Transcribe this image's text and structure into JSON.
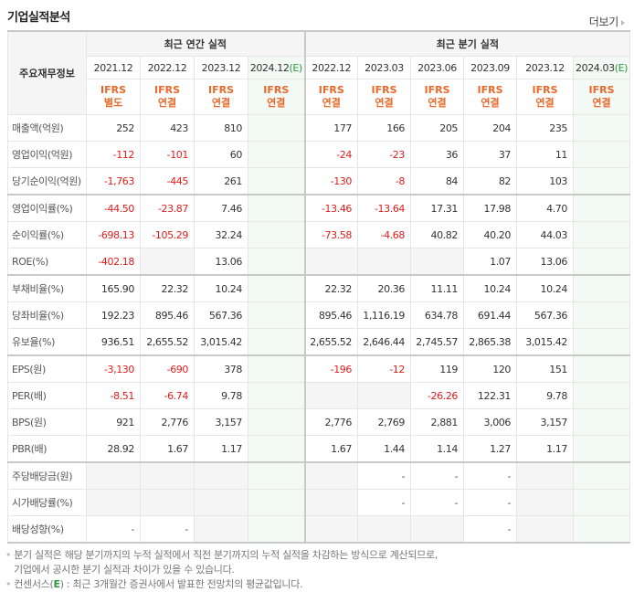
{
  "header": {
    "title": "기업실적분석",
    "more_label": "더보기"
  },
  "table": {
    "row_header_label": "주요재무정보",
    "groups": {
      "annual": "최근 연간 실적",
      "quarterly": "최근 분기 실적"
    },
    "periods": [
      {
        "label": "2021.12",
        "est": false
      },
      {
        "label": "2022.12",
        "est": false
      },
      {
        "label": "2023.12",
        "est": false
      },
      {
        "label": "2024.12",
        "est": true
      },
      {
        "label": "2022.12",
        "est": false
      },
      {
        "label": "2023.03",
        "est": false
      },
      {
        "label": "2023.06",
        "est": false
      },
      {
        "label": "2023.09",
        "est": false
      },
      {
        "label": "2023.12",
        "est": false
      },
      {
        "label": "2024.03",
        "est": true
      }
    ],
    "est_marker": "(E)",
    "standards": [
      {
        "line1": "IFRS",
        "line2": "별도"
      },
      {
        "line1": "IFRS",
        "line2": "연결"
      },
      {
        "line1": "IFRS",
        "line2": "연결"
      },
      {
        "line1": "IFRS",
        "line2": "연결"
      },
      {
        "line1": "IFRS",
        "line2": "연결"
      },
      {
        "line1": "IFRS",
        "line2": "연결"
      },
      {
        "line1": "IFRS",
        "line2": "연결"
      },
      {
        "line1": "IFRS",
        "line2": "연결"
      },
      {
        "line1": "IFRS",
        "line2": "연결"
      },
      {
        "line1": "IFRS",
        "line2": "연결"
      }
    ],
    "rows": [
      {
        "label": "매출액(억원)",
        "values": [
          "252",
          "423",
          "810",
          "",
          "177",
          "166",
          "205",
          "204",
          "235",
          ""
        ]
      },
      {
        "label": "영업이익(억원)",
        "values": [
          "-112",
          "-101",
          "60",
          "",
          "-24",
          "-23",
          "36",
          "37",
          "11",
          ""
        ]
      },
      {
        "label": "당기순이익(억원)",
        "values": [
          "-1,763",
          "-445",
          "261",
          "",
          "-130",
          "-8",
          "84",
          "82",
          "103",
          ""
        ]
      },
      {
        "label": "영업이익률(%)",
        "values": [
          "-44.50",
          "-23.87",
          "7.46",
          "",
          "-13.46",
          "-13.64",
          "17.31",
          "17.98",
          "4.70",
          ""
        ]
      },
      {
        "label": "순이익률(%)",
        "values": [
          "-698.13",
          "-105.29",
          "32.24",
          "",
          "-73.58",
          "-4.68",
          "40.82",
          "40.20",
          "44.03",
          ""
        ]
      },
      {
        "label": "ROE(%)",
        "values": [
          "-402.18",
          "",
          "13.06",
          "",
          "",
          "",
          "",
          "1.07",
          "13.06",
          ""
        ]
      },
      {
        "label": "부채비율(%)",
        "values": [
          "165.90",
          "22.32",
          "10.24",
          "",
          "22.32",
          "20.36",
          "11.11",
          "10.24",
          "10.24",
          ""
        ]
      },
      {
        "label": "당좌비율(%)",
        "values": [
          "192.23",
          "895.46",
          "567.36",
          "",
          "895.46",
          "1,116.19",
          "634.78",
          "691.44",
          "567.36",
          ""
        ]
      },
      {
        "label": "유보율(%)",
        "values": [
          "936.51",
          "2,655.52",
          "3,015.42",
          "",
          "2,655.52",
          "2,646.44",
          "2,745.57",
          "2,865.38",
          "3,015.42",
          ""
        ]
      },
      {
        "label": "EPS(원)",
        "values": [
          "-3,130",
          "-690",
          "378",
          "",
          "-196",
          "-12",
          "119",
          "120",
          "151",
          ""
        ]
      },
      {
        "label": "PER(배)",
        "values": [
          "-8.51",
          "-6.74",
          "9.78",
          "",
          "",
          "",
          "-26.26",
          "122.31",
          "9.78",
          ""
        ]
      },
      {
        "label": "BPS(원)",
        "values": [
          "921",
          "2,776",
          "3,157",
          "",
          "2,776",
          "2,769",
          "2,881",
          "3,006",
          "3,157",
          ""
        ]
      },
      {
        "label": "PBR(배)",
        "values": [
          "28.92",
          "1.67",
          "1.17",
          "",
          "1.67",
          "1.44",
          "1.14",
          "1.27",
          "1.17",
          ""
        ]
      },
      {
        "label": "주당배당금(원)",
        "values": [
          "",
          "",
          "",
          "",
          "",
          "-",
          "-",
          "-",
          "",
          ""
        ]
      },
      {
        "label": "시가배당률(%)",
        "values": [
          "",
          "",
          "",
          "",
          "",
          "-",
          "-",
          "-",
          "",
          ""
        ]
      },
      {
        "label": "배당성향(%)",
        "values": [
          "-",
          "-",
          "",
          "",
          "",
          "",
          "",
          "-",
          "",
          ""
        ]
      }
    ],
    "group_break_rows": [
      3,
      6,
      9,
      13
    ]
  },
  "notes": {
    "line1": "분기 실적은 해당 분기까지의 누적 실적에서 직전 분기까지의 누적 실적을 차감하는 방식으로 계산되므로,",
    "line1b": "기업에서 공시한 분기 실적과 차이가 있을 수 있습니다.",
    "line2_prefix": "컨센서스(",
    "line2_e": "E",
    "line2_suffix": ") : 최근 3개월간 증권사에서 발표한 전망치의 평균값입니다."
  },
  "colors": {
    "negative": "#e21b1b",
    "standard_label": "#e9682a",
    "estimate_marker": "#2b9a3a",
    "estimate_column_bg": "#f3f9f5",
    "empty_cell_bg": "#f5f5f5"
  }
}
